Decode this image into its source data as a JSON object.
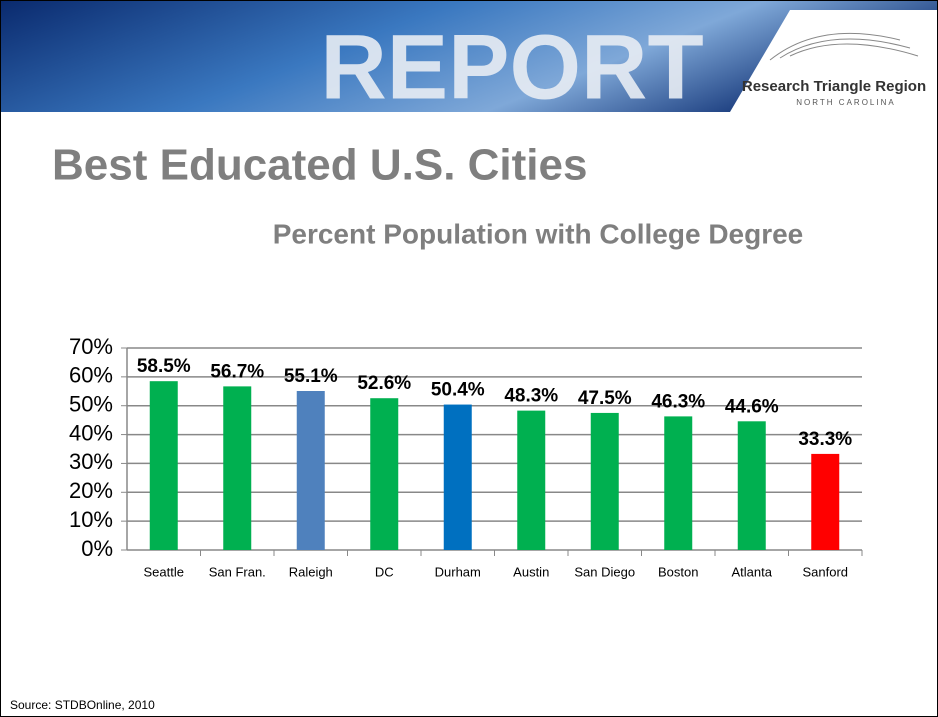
{
  "header": {
    "banner": "REPORT",
    "logo": "Research Triangle Region",
    "logo_sub": "NORTH CAROLINA"
  },
  "chart_data": {
    "type": "bar",
    "title": "Best Educated U.S. Cities",
    "subtitle": "Percent Population with College Degree",
    "source": "Source: STDBOnline, 2010",
    "categories": [
      "Seattle",
      "San Fran.",
      "Raleigh",
      "DC",
      "Durham",
      "Austin",
      "San Diego",
      "Boston",
      "Atlanta",
      "Sanford"
    ],
    "values": [
      58.5,
      56.7,
      55.1,
      52.6,
      50.4,
      48.3,
      47.5,
      46.3,
      44.6,
      33.3
    ],
    "value_labels": [
      "58.5%",
      "56.7%",
      "55.1%",
      "52.6%",
      "50.4%",
      "48.3%",
      "47.5%",
      "46.3%",
      "44.6%",
      "33.3%"
    ],
    "colors": [
      "#00b050",
      "#00b050",
      "#4f81bd",
      "#00b050",
      "#0070c0",
      "#00b050",
      "#00b050",
      "#00b050",
      "#00b050",
      "#ff0000"
    ],
    "ylim": [
      0,
      70
    ],
    "yticks": [
      {
        "value": 0,
        "label": "0%"
      },
      {
        "value": 10,
        "label": "10%"
      },
      {
        "value": 20,
        "label": "20%"
      },
      {
        "value": 30,
        "label": "30%"
      },
      {
        "value": 40,
        "label": "40%"
      },
      {
        "value": 50,
        "label": "50%"
      },
      {
        "value": 60,
        "label": "60%"
      },
      {
        "value": 70,
        "label": "70%"
      }
    ],
    "grid": true
  }
}
